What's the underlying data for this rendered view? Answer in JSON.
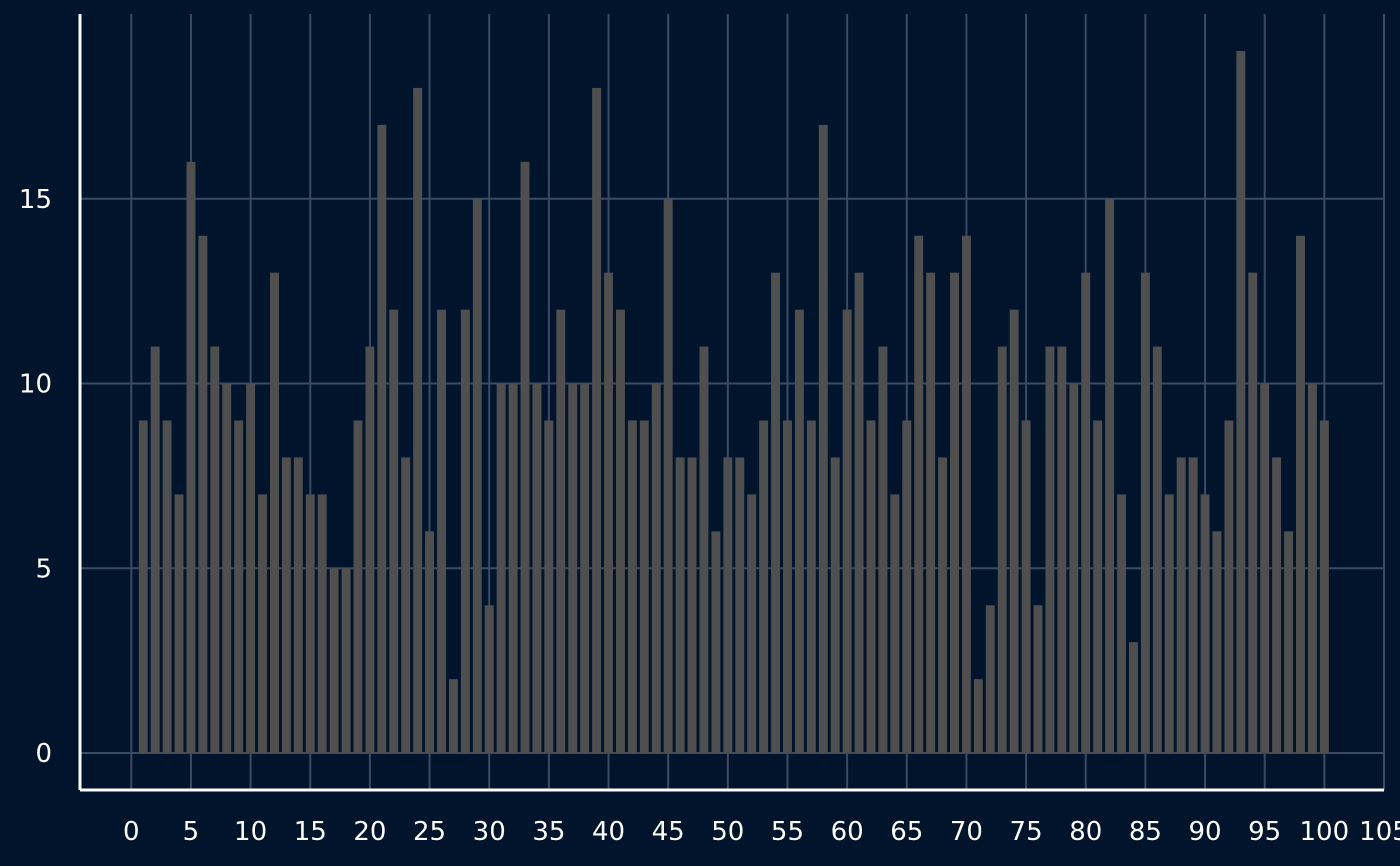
{
  "colors": {
    "background": "#00142b",
    "grid": "#3a4b63",
    "axis": "#ffffff",
    "bar": "#4f4f4f",
    "tick_text": "#ffffff"
  },
  "chart_data": {
    "type": "bar",
    "title": "",
    "xlabel": "",
    "ylabel": "",
    "xlim": [
      -4.3,
      105
    ],
    "ylim": [
      -1,
      20
    ],
    "grid": true,
    "legend": "none",
    "x": [
      1,
      2,
      3,
      4,
      5,
      6,
      7,
      8,
      9,
      10,
      11,
      12,
      13,
      14,
      15,
      16,
      17,
      18,
      19,
      20,
      21,
      22,
      23,
      24,
      25,
      26,
      27,
      28,
      29,
      30,
      31,
      32,
      33,
      34,
      35,
      36,
      37,
      38,
      39,
      40,
      41,
      42,
      43,
      44,
      45,
      46,
      47,
      48,
      49,
      50,
      51,
      52,
      53,
      54,
      55,
      56,
      57,
      58,
      59,
      60,
      61,
      62,
      63,
      64,
      65,
      66,
      67,
      68,
      69,
      70,
      71,
      72,
      73,
      74,
      75,
      76,
      77,
      78,
      79,
      80,
      81,
      82,
      83,
      84,
      85,
      86,
      87,
      88,
      89,
      90,
      91,
      92,
      93,
      94,
      95,
      96,
      97,
      98,
      99,
      100
    ],
    "values": [
      9,
      11,
      9,
      7,
      16,
      14,
      11,
      10,
      9,
      10,
      7,
      13,
      8,
      8,
      7,
      7,
      5,
      5,
      9,
      11,
      17,
      12,
      8,
      18,
      6,
      12,
      2,
      12,
      15,
      4,
      10,
      10,
      16,
      10,
      9,
      12,
      10,
      10,
      18,
      13,
      12,
      9,
      9,
      10,
      15,
      8,
      8,
      11,
      6,
      8,
      8,
      7,
      9,
      13,
      9,
      12,
      9,
      17,
      8,
      12,
      13,
      9,
      11,
      7,
      9,
      14,
      13,
      8,
      13,
      14,
      2,
      4,
      11,
      12,
      9,
      4,
      11,
      11,
      10,
      13,
      9,
      15,
      7,
      3,
      13,
      11,
      7,
      8,
      8,
      7,
      6,
      9,
      19,
      13,
      10,
      8,
      6,
      14,
      10,
      9
    ],
    "x_ticks": [
      "0",
      "5",
      "10",
      "15",
      "20",
      "25",
      "30",
      "35",
      "40",
      "45",
      "50",
      "55",
      "60",
      "65",
      "70",
      "75",
      "80",
      "85",
      "90",
      "95",
      "100",
      "105"
    ],
    "y_ticks": [
      "0",
      "5",
      "10",
      "15"
    ]
  }
}
